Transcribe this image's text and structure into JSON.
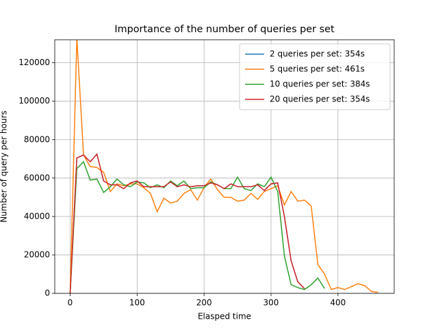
{
  "chart_data": {
    "type": "line",
    "title": "Importance of the number of queries per set",
    "x_label": "Elasped time",
    "y_label": "Number of query per hours",
    "xlim": [
      -23,
      484
    ],
    "ylim": [
      0,
      132000
    ],
    "xticks": [
      0,
      100,
      200,
      300,
      400
    ],
    "yticks": [
      0,
      20000,
      40000,
      60000,
      80000,
      100000,
      120000
    ],
    "grid": true,
    "legend": "upper right",
    "series": [
      {
        "name": "2 queries per set: 354s",
        "color": "#1f77b4",
        "x": [
          0,
          10,
          20,
          30,
          40,
          50,
          60,
          70,
          80,
          90,
          100,
          110,
          120,
          130,
          140,
          150,
          160,
          170,
          180,
          190,
          200,
          210,
          220,
          230,
          240,
          250,
          260,
          270,
          280,
          290,
          300,
          310,
          320,
          330,
          340,
          350
        ],
        "values": [
          0,
          70500,
          72000,
          68500,
          72500,
          58500,
          56500,
          56500,
          54500,
          57500,
          58500,
          55500,
          55500,
          55500,
          55500,
          58000,
          55500,
          56500,
          55500,
          56000,
          56000,
          57500,
          56500,
          54500,
          57000,
          55500,
          55500,
          55500,
          56500,
          53500,
          57000,
          57500,
          40000,
          17000,
          6000,
          2500
        ]
      },
      {
        "name": "5 queries per set: 461s",
        "color": "#ff7f0e",
        "x": [
          0,
          10,
          20,
          30,
          40,
          50,
          60,
          70,
          80,
          90,
          100,
          110,
          120,
          130,
          140,
          150,
          160,
          170,
          180,
          190,
          200,
          210,
          220,
          230,
          240,
          250,
          260,
          270,
          280,
          290,
          300,
          310,
          320,
          330,
          340,
          350,
          360,
          370,
          380,
          390,
          400,
          410,
          420,
          430,
          440,
          450,
          460
        ],
        "values": [
          0,
          133000,
          72000,
          66000,
          65500,
          63000,
          53000,
          57000,
          56000,
          57000,
          57000,
          55000,
          52000,
          42500,
          49500,
          47000,
          48000,
          52000,
          54000,
          48500,
          55000,
          59500,
          54000,
          50000,
          50000,
          48000,
          48500,
          52000,
          49000,
          53000,
          54500,
          56000,
          46000,
          53000,
          48000,
          48500,
          45500,
          15000,
          10000,
          2000,
          3000,
          2000,
          3500,
          5000,
          4000,
          1000,
          500
        ]
      },
      {
        "name": "10 queries per set: 384s",
        "color": "#2ca02c",
        "x": [
          0,
          10,
          20,
          30,
          40,
          50,
          60,
          70,
          80,
          90,
          100,
          110,
          120,
          130,
          140,
          150,
          160,
          170,
          180,
          190,
          200,
          210,
          220,
          230,
          240,
          250,
          260,
          270,
          280,
          290,
          300,
          310,
          320,
          330,
          340,
          350,
          360,
          370,
          380
        ],
        "values": [
          0,
          65000,
          68500,
          59000,
          59500,
          52500,
          55500,
          59500,
          56500,
          55500,
          58000,
          57500,
          55000,
          56500,
          55000,
          58500,
          56000,
          58500,
          54500,
          55000,
          55000,
          58000,
          56500,
          54500,
          54500,
          60500,
          54500,
          53500,
          57000,
          55500,
          60500,
          53000,
          19500,
          4500,
          3000,
          2000,
          4500,
          8000,
          2500
        ]
      },
      {
        "name": "20 queries per set: 354s",
        "color": "#d62728",
        "x": [
          0,
          10,
          20,
          30,
          40,
          50,
          60,
          70,
          80,
          90,
          100,
          110,
          120,
          130,
          140,
          150,
          160,
          170,
          180,
          190,
          200,
          210,
          220,
          230,
          240,
          250,
          260,
          270,
          280,
          290,
          300,
          310,
          320,
          330,
          340,
          350
        ],
        "values": [
          0,
          70500,
          72000,
          68500,
          72500,
          58500,
          56500,
          56500,
          54500,
          57500,
          58500,
          55500,
          55500,
          55500,
          55500,
          58000,
          55500,
          56500,
          55500,
          56000,
          56000,
          57500,
          56500,
          54500,
          57000,
          55500,
          55500,
          55500,
          56500,
          53500,
          57000,
          57500,
          40000,
          17000,
          6000,
          2500
        ]
      }
    ]
  }
}
